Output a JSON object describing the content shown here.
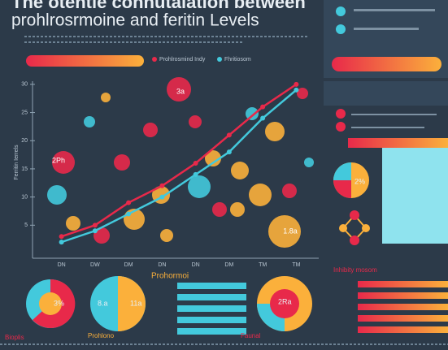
{
  "title_lines": [
    "The otentle conhutalation between",
    "prohlrosrmoine and feritin Levels"
  ],
  "chart_data": {
    "type": "line",
    "categories": [
      "DN",
      "DW",
      "DM",
      "DN",
      "DN",
      "DM",
      "TM",
      "TM"
    ],
    "series": [
      {
        "name": "Prohlrosmind Indy",
        "color": "#e8294a",
        "values": [
          3,
          5,
          9,
          12,
          16,
          21,
          26,
          30
        ]
      },
      {
        "name": "Fhritiosom",
        "color": "#43c9dc",
        "values": [
          2,
          4,
          7,
          10,
          14,
          18,
          24,
          29
        ]
      }
    ],
    "ylim": [
      0,
      32
    ],
    "yticks": [
      5,
      10,
      15,
      20,
      25,
      30
    ],
    "y_label": "Ferritin Ierrels",
    "annotations": [
      "3a",
      "2Ph",
      "1.8a"
    ]
  },
  "side": {
    "pie_label": "2%"
  },
  "bottom": {
    "pie_labels": [
      "3%",
      "8.a",
      "11a",
      "2Ra"
    ],
    "captions": [
      "Bioplis",
      "Prohlono",
      "Faunal"
    ],
    "section_titles": [
      "Prohormoi",
      "Inhibity mosom"
    ]
  }
}
